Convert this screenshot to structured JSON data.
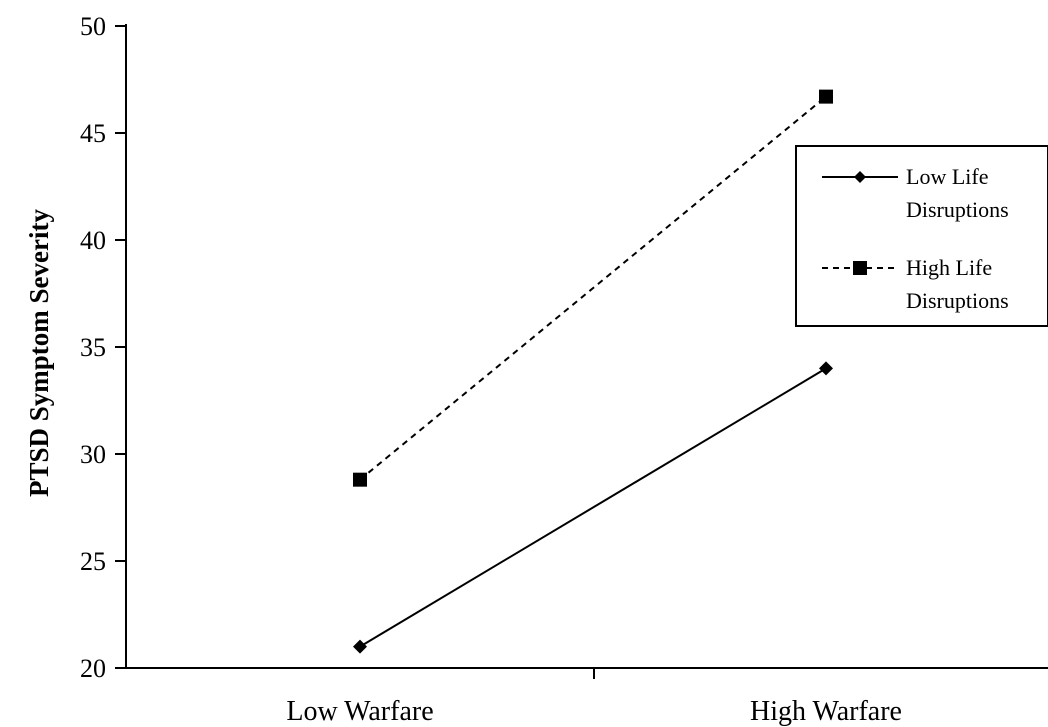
{
  "chart_data": {
    "type": "line",
    "title": "",
    "xlabel": "",
    "ylabel": "PTSD Symptom Severity",
    "categories": [
      "Low Warfare",
      "High Warfare"
    ],
    "ylim": [
      20,
      50
    ],
    "yticks": [
      "20",
      "25",
      "30",
      "35",
      "40",
      "45",
      "50"
    ],
    "grid": false,
    "legend": {
      "position": "right",
      "entries": [
        {
          "line1": "Low Life",
          "line2": "Disruptions"
        },
        {
          "line1": "High Life",
          "line2": "Disruptions"
        }
      ]
    },
    "series": [
      {
        "name": "Low Life Disruptions",
        "values": [
          21,
          34
        ],
        "marker": "diamond-icon",
        "line": "solid",
        "color": "#000000"
      },
      {
        "name": "High Life Disruptions",
        "values": [
          28.8,
          46.7
        ],
        "marker": "square-icon",
        "line": "dashed",
        "color": "#000000"
      }
    ]
  }
}
